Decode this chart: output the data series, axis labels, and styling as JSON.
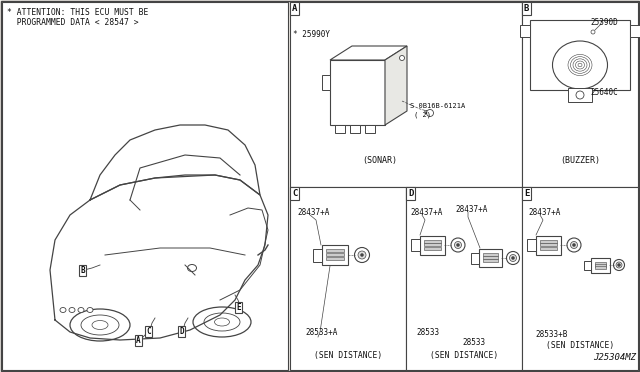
{
  "bg_color": "#f0ede8",
  "border_color": "#444444",
  "text_color": "#111111",
  "attention_line1": "* ATTENTION: THIS ECU MUST BE",
  "attention_line2": "  PROGRAMMED DATA < 28547 >",
  "diagram_id": "J25304MZ",
  "panel_A_parts": [
    "* 25990Y",
    "S 0B16B-6121A",
    "( 2)"
  ],
  "panel_A_caption": "(SONAR)",
  "panel_B_parts": [
    "25390D",
    "25640C"
  ],
  "panel_B_caption": "(BUZZER)",
  "panel_C_parts": [
    "28437+A",
    "28533+A"
  ],
  "panel_C_caption": "(SEN DISTANCE)",
  "panel_D_parts": [
    "28437+A",
    "28437+A",
    "28533",
    "28533"
  ],
  "panel_D_caption": "(SEN DISTANCE)",
  "panel_E_parts": [
    "28437+A",
    "28533+B"
  ],
  "panel_E_caption": "(SEN DISTANCE)"
}
